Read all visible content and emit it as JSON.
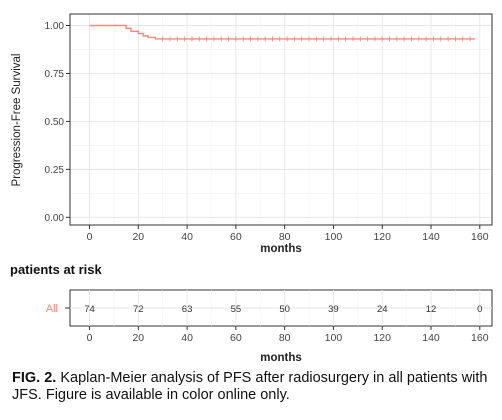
{
  "chart_data": [
    {
      "type": "line",
      "subtype": "kaplan-meier step",
      "title": "",
      "xlabel": "months",
      "ylabel": "Progression-Free Survival",
      "xlim": [
        -8,
        165
      ],
      "ylim": [
        -0.04,
        1.06
      ],
      "xticks": [
        0,
        20,
        40,
        60,
        80,
        100,
        120,
        140,
        160
      ],
      "yticks": [
        0.0,
        0.25,
        0.5,
        0.75,
        1.0
      ],
      "ytick_labels": [
        "0.00",
        "0.25",
        "0.50",
        "0.75",
        "1.00"
      ],
      "grid": true,
      "line_color": "#f08a80",
      "series": [
        {
          "steps": [
            [
              0,
              1.0
            ],
            [
              15,
              0.985
            ],
            [
              17,
              0.97
            ],
            [
              20,
              0.958
            ],
            [
              22,
              0.946
            ],
            [
              24,
              0.938
            ],
            [
              27,
              0.93
            ],
            [
              158,
              0.93
            ]
          ],
          "censor_times": [
            30,
            33,
            36,
            39,
            42,
            45,
            48,
            51,
            54,
            57,
            60,
            63,
            66,
            69,
            72,
            75,
            78,
            81,
            84,
            87,
            90,
            93,
            96,
            99,
            102,
            105,
            108,
            111,
            114,
            117,
            120,
            123,
            126,
            129,
            132,
            135,
            138,
            141,
            144,
            147,
            150,
            153,
            156
          ]
        }
      ]
    },
    {
      "type": "table",
      "title": "patients at risk",
      "row_label": "All",
      "xlabel": "months",
      "xticks": [
        0,
        20,
        40,
        60,
        80,
        100,
        120,
        140,
        160
      ],
      "times": [
        0,
        20,
        40,
        60,
        80,
        100,
        120,
        140,
        160
      ],
      "values": [
        "74",
        "72",
        "63",
        "55",
        "50",
        "39",
        "24",
        "12",
        "0"
      ]
    }
  ],
  "caption": {
    "label": "FIG. 2.",
    "text": " Kaplan-Meier analysis of PFS after radiosurgery in all patients with JFS. Figure is available in color online only."
  }
}
